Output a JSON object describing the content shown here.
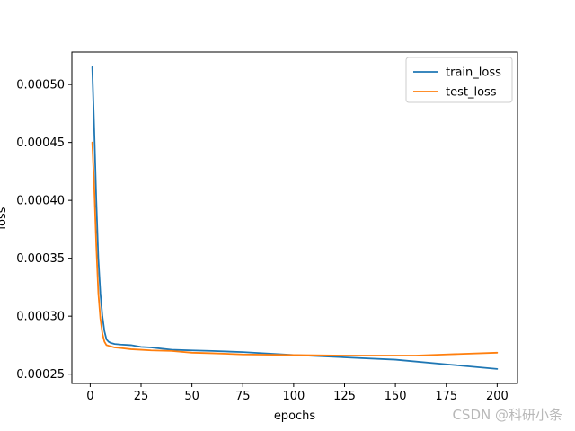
{
  "chart_data": {
    "type": "line",
    "title": "",
    "xlabel": "epochs",
    "ylabel": "loss",
    "xlim": [
      -9,
      210
    ],
    "ylim": [
      0.000242,
      0.000528
    ],
    "xticks": [
      0,
      25,
      50,
      75,
      100,
      125,
      150,
      175,
      200
    ],
    "xtick_labels": [
      "0",
      "25",
      "50",
      "75",
      "100",
      "125",
      "150",
      "175",
      "200"
    ],
    "yticks": [
      0.00025,
      0.0003,
      0.00035,
      0.0004,
      0.00045,
      0.0005
    ],
    "ytick_labels": [
      "0.00025",
      "0.00030",
      "0.00035",
      "0.00040",
      "0.00045",
      "0.00050"
    ],
    "grid": false,
    "legend_position": "top-right",
    "series": [
      {
        "name": "train_loss",
        "color": "#1f77b4",
        "x": [
          1,
          2,
          3,
          4,
          5,
          6,
          7,
          8,
          9,
          10,
          12,
          15,
          20,
          25,
          30,
          40,
          50,
          60,
          75,
          100,
          125,
          150,
          175,
          200
        ],
        "y": [
          0.000515,
          0.00046,
          0.0004,
          0.00035,
          0.00032,
          0.0003,
          0.000287,
          0.00028,
          0.000278,
          0.000277,
          0.000276,
          0.0002755,
          0.000275,
          0.0002735,
          0.000273,
          0.000271,
          0.0002705,
          0.00027,
          0.000269,
          0.0002665,
          0.0002645,
          0.0002625,
          0.0002585,
          0.0002545
        ]
      },
      {
        "name": "test_loss",
        "color": "#ff7f0e",
        "x": [
          1,
          2,
          3,
          4,
          5,
          6,
          7,
          8,
          9,
          10,
          12,
          15,
          20,
          25,
          30,
          40,
          50,
          60,
          75,
          100,
          125,
          150,
          160,
          175,
          200
        ],
        "y": [
          0.00045,
          0.00041,
          0.00036,
          0.00032,
          0.000298,
          0.000285,
          0.000278,
          0.000275,
          0.0002745,
          0.000274,
          0.000273,
          0.0002725,
          0.0002715,
          0.000271,
          0.0002705,
          0.00027,
          0.0002685,
          0.000268,
          0.000267,
          0.0002665,
          0.000266,
          0.000266,
          0.000266,
          0.000267,
          0.0002685
        ]
      }
    ]
  },
  "watermark": "CSDN @科研小条"
}
